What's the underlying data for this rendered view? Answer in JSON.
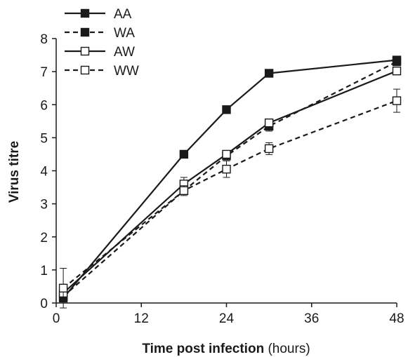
{
  "chart_data": {
    "type": "line",
    "xlabel_bold": "Time post infection",
    "xlabel_unit": " (hours)",
    "ylabel": "Virus titre",
    "xlim": [
      0,
      48
    ],
    "ylim": [
      0,
      8
    ],
    "xticks": [
      "0",
      "12",
      "24",
      "36",
      "48"
    ],
    "yticks": [
      "0",
      "1",
      "2",
      "3",
      "4",
      "5",
      "6",
      "7",
      "8"
    ],
    "grid": false,
    "legend_position": "top-left",
    "series": [
      {
        "name": "AA",
        "line_style": "solid",
        "marker": "filled-square",
        "x": [
          1,
          18,
          24,
          30,
          48
        ],
        "y": [
          0.15,
          4.5,
          5.85,
          6.95,
          7.35
        ],
        "error": [
          0,
          0,
          0,
          0,
          0
        ]
      },
      {
        "name": "WA",
        "line_style": "dashed",
        "marker": "filled-square",
        "x": [
          1,
          18,
          24,
          30,
          48
        ],
        "y": [
          0.2,
          3.4,
          4.45,
          5.35,
          7.3
        ],
        "error": [
          0,
          0,
          0,
          0.15,
          0
        ]
      },
      {
        "name": "AW",
        "line_style": "solid",
        "marker": "open-square",
        "x": [
          1,
          18,
          24,
          30,
          48
        ],
        "y": [
          0.3,
          3.6,
          4.5,
          5.45,
          7.02
        ],
        "error": [
          0,
          0.2,
          0,
          0,
          0
        ]
      },
      {
        "name": "WW",
        "line_style": "dashed",
        "marker": "open-square",
        "x": [
          1,
          18,
          24,
          30,
          48
        ],
        "y": [
          0.45,
          3.4,
          4.05,
          4.67,
          6.12
        ],
        "error": [
          0.6,
          0.15,
          0.25,
          0.18,
          0.35
        ]
      }
    ],
    "colors": {
      "line": "#1a1a1a",
      "marker_fill": "#1a1a1a",
      "open_fill": "#ffffff"
    }
  }
}
